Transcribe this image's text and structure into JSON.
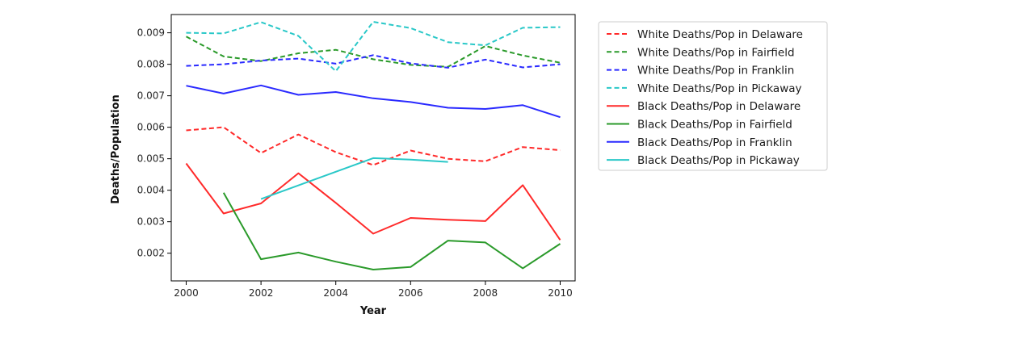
{
  "chart_data": {
    "type": "line",
    "title": "",
    "xlabel": "Year",
    "ylabel": "Deaths/Population",
    "xlim": [
      1999.6,
      2010.4
    ],
    "ylim": [
      0.00112,
      0.00958
    ],
    "xticks": [
      2000,
      2002,
      2004,
      2006,
      2008,
      2010
    ],
    "yticks": [
      0.002,
      0.003,
      0.004,
      0.005,
      0.006,
      0.007,
      0.008,
      0.009
    ],
    "xtick_labels": [
      "2000",
      "2002",
      "2004",
      "2006",
      "2008",
      "2010"
    ],
    "ytick_labels": [
      "0.002",
      "0.003",
      "0.004",
      "0.005",
      "0.006",
      "0.007",
      "0.008",
      "0.009"
    ],
    "grid": false,
    "legend_position": "outside-right",
    "series": [
      {
        "name": "White Deaths/Pop in Delaware",
        "color": "#ff2a2a",
        "style": "dashed",
        "x": [
          2000,
          2001,
          2002,
          2003,
          2004,
          2005,
          2006,
          2007,
          2008,
          2009,
          2010
        ],
        "y": [
          0.0059,
          0.006,
          0.00518,
          0.00577,
          0.00521,
          0.0048,
          0.00526,
          0.005,
          0.00492,
          0.00537,
          0.00527
        ]
      },
      {
        "name": "White Deaths/Pop in Fairfield",
        "color": "#2a9a2a",
        "style": "dashed",
        "x": [
          2000,
          2001,
          2002,
          2003,
          2004,
          2005,
          2006,
          2007,
          2008,
          2009,
          2010
        ],
        "y": [
          0.00888,
          0.00825,
          0.0081,
          0.00835,
          0.00846,
          0.00816,
          0.00798,
          0.00792,
          0.00858,
          0.00828,
          0.00805
        ]
      },
      {
        "name": "White Deaths/Pop in Franklin",
        "color": "#2a2aff",
        "style": "dashed",
        "x": [
          2000,
          2001,
          2002,
          2003,
          2004,
          2005,
          2006,
          2007,
          2008,
          2009,
          2010
        ],
        "y": [
          0.00795,
          0.008,
          0.00812,
          0.00818,
          0.00802,
          0.00829,
          0.00803,
          0.00789,
          0.00815,
          0.0079,
          0.008
        ]
      },
      {
        "name": "White Deaths/Pop in Pickaway",
        "color": "#2ac8c8",
        "style": "dashed",
        "x": [
          2000,
          2001,
          2002,
          2003,
          2004,
          2005,
          2006,
          2007,
          2008,
          2009,
          2010
        ],
        "y": [
          0.009,
          0.00898,
          0.00934,
          0.0089,
          0.00778,
          0.00935,
          0.00915,
          0.0087,
          0.0086,
          0.00916,
          0.00918
        ]
      },
      {
        "name": "Black Deaths/Pop in Delaware",
        "color": "#ff2a2a",
        "style": "solid",
        "x": [
          2000,
          2001,
          2002,
          2003,
          2004,
          2005,
          2006,
          2007,
          2008,
          2009,
          2010
        ],
        "y": [
          0.00485,
          0.00326,
          0.00358,
          0.00454,
          0.0036,
          0.00262,
          0.00312,
          0.00306,
          0.00302,
          0.00416,
          0.00242
        ]
      },
      {
        "name": "Black Deaths/Pop in Fairfield",
        "color": "#2a9a2a",
        "style": "solid",
        "x": [
          2001,
          2002,
          2003,
          2004,
          2005,
          2006,
          2007,
          2008,
          2009,
          2010
        ],
        "y": [
          0.00392,
          0.00181,
          0.00202,
          0.00173,
          0.00148,
          0.00156,
          0.0024,
          0.00234,
          0.00152,
          0.0023
        ]
      },
      {
        "name": "Black Deaths/Pop in Franklin",
        "color": "#2a2aff",
        "style": "solid",
        "x": [
          2000,
          2001,
          2002,
          2003,
          2004,
          2005,
          2006,
          2007,
          2008,
          2009,
          2010
        ],
        "y": [
          0.00732,
          0.00707,
          0.00733,
          0.00703,
          0.00712,
          0.00692,
          0.0068,
          0.00662,
          0.00658,
          0.0067,
          0.00632
        ]
      },
      {
        "name": "Black Deaths/Pop in Pickaway",
        "color": "#2ac8c8",
        "style": "solid",
        "x": [
          2002,
          2005,
          2006,
          2007
        ],
        "y": [
          0.00372,
          0.00502,
          0.00497,
          0.0049
        ]
      }
    ]
  }
}
